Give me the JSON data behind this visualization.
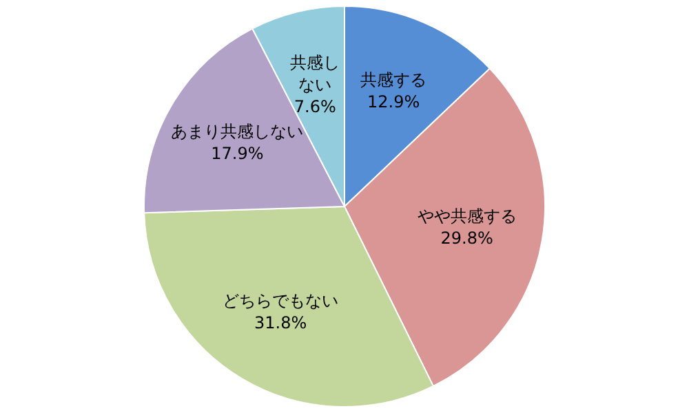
{
  "chart_data": {
    "type": "pie",
    "categories": [
      "共感する",
      "やや共感する",
      "どちらでもない",
      "あまり共感しない",
      "共感しない"
    ],
    "values": [
      12.9,
      29.8,
      31.8,
      17.9,
      7.6
    ],
    "value_labels": [
      "12.9%",
      "29.8%",
      "31.8%",
      "17.9%",
      "7.6%"
    ],
    "colors": [
      "#558ed5",
      "#d99694",
      "#c3d69b",
      "#b3a2c7",
      "#93cddd"
    ],
    "legend": false
  }
}
